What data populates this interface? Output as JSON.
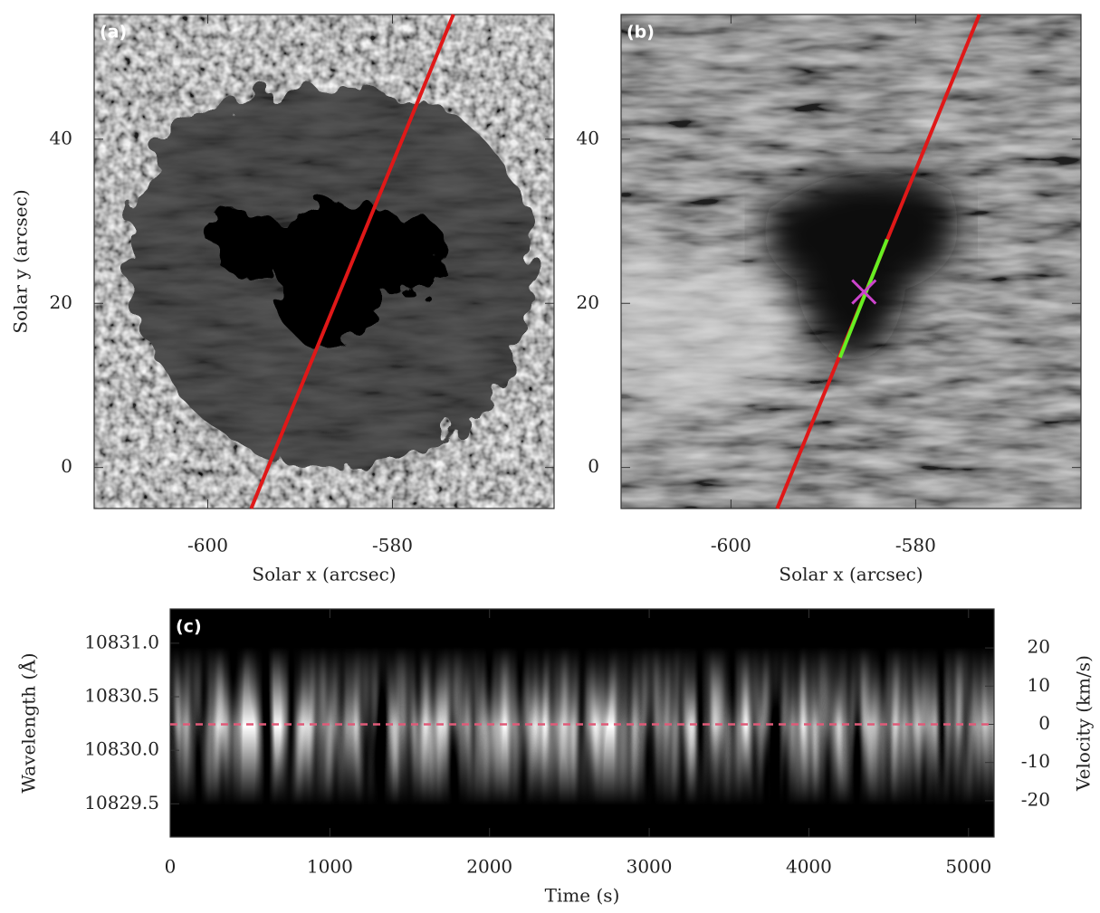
{
  "chart_data": [
    {
      "type": "image",
      "panel_label": "(a)",
      "xlabel": "Solar x (arcsec)",
      "ylabel": "Solar y (arcsec)",
      "xlim": [
        -612.3,
        -562.5
      ],
      "ylim": [
        -5,
        55.2
      ],
      "xticks": [
        -600,
        -580
      ],
      "yticks": [
        0,
        20,
        40
      ],
      "lines": [
        {
          "color": "#e01818",
          "x": [
            -595.3,
            -573.4
          ],
          "y": [
            -5,
            55.2
          ]
        }
      ]
    },
    {
      "type": "image",
      "panel_label": "(b)",
      "xlabel": "Solar x (arcsec)",
      "xlim": [
        -611.9,
        -562.1
      ],
      "ylim": [
        -5,
        55.2
      ],
      "xticks": [
        -600,
        -580
      ],
      "yticks": [
        0,
        20,
        40
      ],
      "lines": [
        {
          "color": "#e01818",
          "x": [
            -595.0,
            -573.1
          ],
          "y": [
            -5,
            55.2
          ]
        },
        {
          "color": "#66ee22",
          "x": [
            -588.2,
            -583.1
          ],
          "y": [
            13.4,
            27.8
          ]
        }
      ],
      "markers": [
        {
          "color": "#cc44cc",
          "symbol": "x",
          "x": -585.6,
          "y": 21.4
        }
      ]
    },
    {
      "type": "spectrogram",
      "panel_label": "(c)",
      "xlabel": "Time (s)",
      "ylabel": "Wavelength (Å)",
      "y2label": "Velocity (km/s)",
      "xlim": [
        0,
        5160
      ],
      "ylim": [
        10829.19,
        10831.32
      ],
      "y2lim": [
        -29.5,
        30.2
      ],
      "xticks": [
        0,
        1000,
        2000,
        3000,
        4000,
        5000
      ],
      "yticks": [
        {
          "value": 10829.5,
          "label": "10829.5"
        },
        {
          "value": 10830,
          "label": "10830.0"
        },
        {
          "value": 10830.5,
          "label": "10830.5"
        },
        {
          "value": 10831,
          "label": "10831.0"
        }
      ],
      "y2ticks": [
        -20,
        -10,
        0,
        10,
        20
      ],
      "hlines": [
        {
          "axis": "y2",
          "value": 0,
          "color": "#e05a78",
          "style": "dashed"
        }
      ]
    }
  ]
}
